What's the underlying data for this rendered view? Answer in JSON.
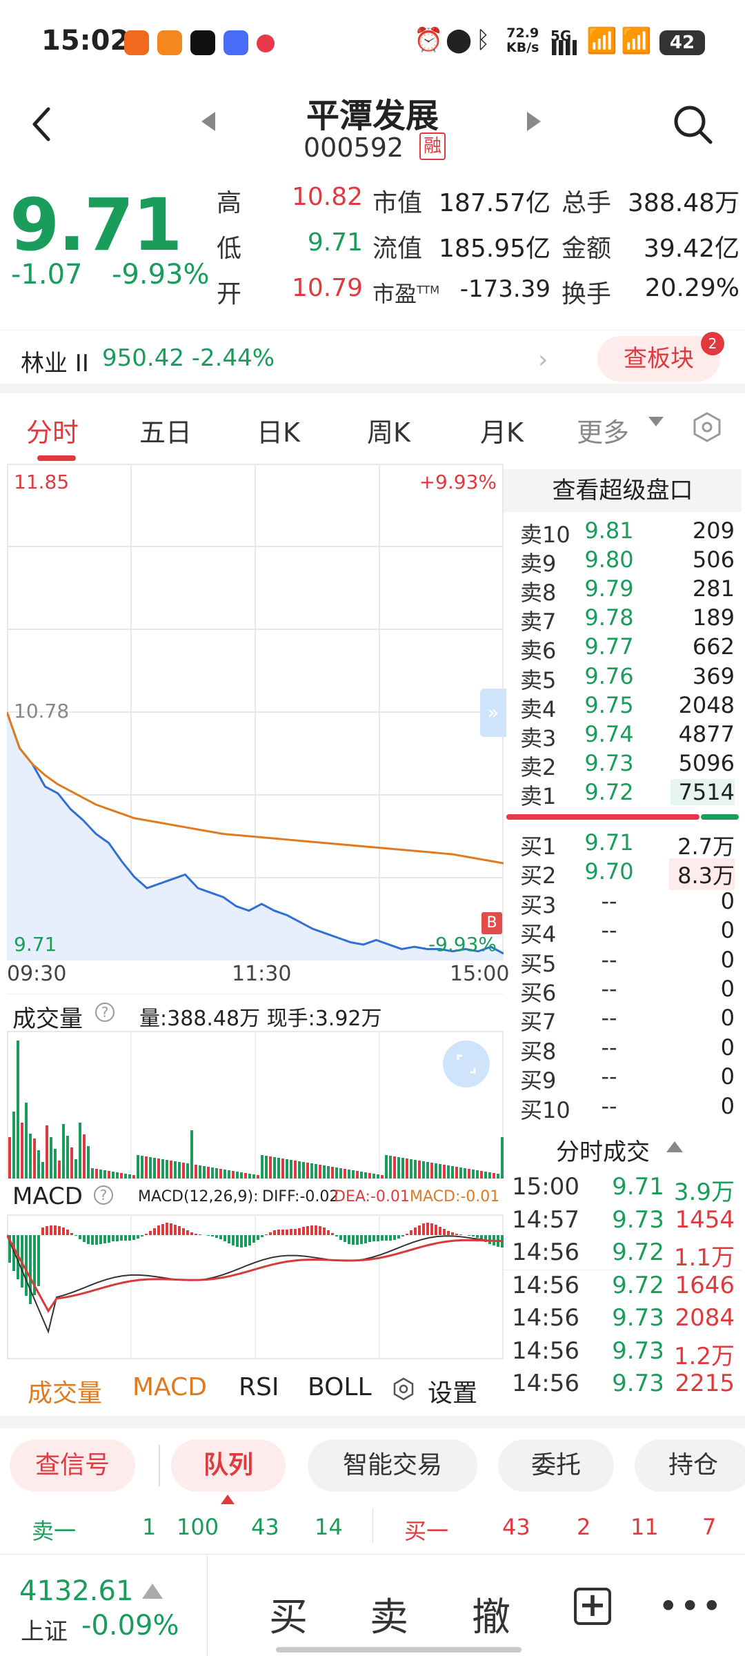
{
  "status_bar": {
    "time": "15:02",
    "net_speed": "72.9\nKB/s",
    "net_speed_top": "72.9",
    "net_speed_bottom": "KB/s",
    "network": "5G",
    "battery": "42"
  },
  "header": {
    "stock_name": "平潭发展",
    "stock_code": "000592",
    "margin_badge": "融"
  },
  "quote": {
    "price": "9.71",
    "change": "-1.07",
    "change_pct": "-9.93%",
    "high_label": "高",
    "high": "10.82",
    "low_label": "低",
    "low": "9.71",
    "open_label": "开",
    "open": "10.79",
    "mktcap_label": "市值",
    "mktcap": "187.57亿",
    "float_label": "流值",
    "float": "185.95亿",
    "pe_label": "市盈",
    "pe_sup": "TTM",
    "pe": "-173.39",
    "vol_label": "总手",
    "vol": "388.48万",
    "amount_label": "金额",
    "amount": "39.42亿",
    "turnover_label": "换手",
    "turnover": "20.29%"
  },
  "sector": {
    "name": "林业 II",
    "value": "950.42 -2.44%",
    "button": "查板块",
    "badge": "2"
  },
  "tabs": [
    "分时",
    "五日",
    "日K",
    "周K",
    "月K",
    "更多"
  ],
  "chart": {
    "price_high": "11.85",
    "pct_high": "+9.93%",
    "price_mid": "10.78",
    "price_low": "9.71",
    "pct_low": "-9.93%",
    "t_start": "09:30",
    "t_mid": "11:30",
    "t_end": "15:00",
    "b_marker": "B",
    "volume_label": "成交量",
    "volume_info": "量:388.48万 现手:3.92万",
    "macd_label": "MACD",
    "macd_params": "MACD(12,26,9):",
    "diff": "DIFF:-0.02",
    "dea": "DEA:-0.01",
    "macd_val": "MACD:-0.01"
  },
  "chart_data": {
    "type": "line",
    "series": [
      {
        "name": "price",
        "values": [
          10.78,
          10.62,
          10.55,
          10.45,
          10.42,
          10.35,
          10.3,
          10.24,
          10.2,
          10.12,
          10.05,
          10.0,
          10.02,
          10.04,
          10.06,
          10.0,
          9.98,
          9.96,
          9.92,
          9.9,
          9.93,
          9.9,
          9.88,
          9.85,
          9.82,
          9.8,
          9.78,
          9.76,
          9.75,
          9.77,
          9.75,
          9.73,
          9.74,
          9.73,
          9.73,
          9.72,
          9.73,
          9.72,
          9.74,
          9.71
        ]
      },
      {
        "name": "avg",
        "values": [
          10.78,
          10.62,
          10.55,
          10.5,
          10.46,
          10.43,
          10.4,
          10.37,
          10.35,
          10.33,
          10.31,
          10.3,
          10.29,
          10.28,
          10.27,
          10.26,
          10.25,
          10.24,
          10.235,
          10.23,
          10.225,
          10.22,
          10.215,
          10.21,
          10.205,
          10.2,
          10.195,
          10.19,
          10.185,
          10.18,
          10.175,
          10.17,
          10.165,
          10.16,
          10.155,
          10.15,
          10.14,
          10.13,
          10.12,
          10.11
        ]
      }
    ],
    "ylim": [
      9.71,
      11.85
    ]
  },
  "book": {
    "header": "查看超级盘口",
    "asks": [
      {
        "label": "卖10",
        "price": "9.81",
        "vol": "209"
      },
      {
        "label": "卖9",
        "price": "9.80",
        "vol": "506"
      },
      {
        "label": "卖8",
        "price": "9.79",
        "vol": "281"
      },
      {
        "label": "卖7",
        "price": "9.78",
        "vol": "189"
      },
      {
        "label": "卖6",
        "price": "9.77",
        "vol": "662"
      },
      {
        "label": "卖5",
        "price": "9.76",
        "vol": "369"
      },
      {
        "label": "卖4",
        "price": "9.75",
        "vol": "2048"
      },
      {
        "label": "卖3",
        "price": "9.74",
        "vol": "4877"
      },
      {
        "label": "卖2",
        "price": "9.73",
        "vol": "5096"
      },
      {
        "label": "卖1",
        "price": "9.72",
        "vol": "7514"
      }
    ],
    "bids": [
      {
        "label": "买1",
        "price": "9.71",
        "vol": "2.7万"
      },
      {
        "label": "买2",
        "price": "9.70",
        "vol": "8.3万"
      },
      {
        "label": "买3",
        "price": "--",
        "vol": "0"
      },
      {
        "label": "买4",
        "price": "--",
        "vol": "0"
      },
      {
        "label": "买5",
        "price": "--",
        "vol": "0"
      },
      {
        "label": "买6",
        "price": "--",
        "vol": "0"
      },
      {
        "label": "买7",
        "price": "--",
        "vol": "0"
      },
      {
        "label": "买8",
        "price": "--",
        "vol": "0"
      },
      {
        "label": "买9",
        "price": "--",
        "vol": "0"
      },
      {
        "label": "买10",
        "price": "--",
        "vol": "0"
      }
    ],
    "ticks_header": "分时成交",
    "ticks": [
      {
        "time": "15:00",
        "price": "9.71",
        "vol": "3.9万"
      },
      {
        "time": "14:57",
        "price": "9.73",
        "vol": "1454"
      },
      {
        "time": "14:56",
        "price": "9.72",
        "vol": "1.1万"
      },
      {
        "time": "14:56",
        "price": "9.72",
        "vol": "1646"
      },
      {
        "time": "14:56",
        "price": "9.73",
        "vol": "2084"
      },
      {
        "time": "14:56",
        "price": "9.73",
        "vol": "1.2万"
      },
      {
        "time": "14:56",
        "price": "9.73",
        "vol": "2215"
      }
    ]
  },
  "indicator_tabs": {
    "volume": "成交量",
    "macd": "MACD",
    "rsi": "RSI",
    "boll": "BOLL",
    "settings": "设置"
  },
  "actions": {
    "signal": "查信号",
    "queue": "队列",
    "smart": "智能交易",
    "entrust": "委托",
    "position": "持仓"
  },
  "level_row": {
    "sell_label": "卖一",
    "sell_vals": [
      "1",
      "100",
      "43",
      "14"
    ],
    "buy_label": "买一",
    "buy_vals": [
      "43",
      "2",
      "11",
      "7"
    ]
  },
  "bottom": {
    "index_value": "4132.61",
    "index_name": "上证",
    "index_change": "-0.09%",
    "buy": "买",
    "sell": "卖",
    "cancel": "撤",
    "add": "+"
  }
}
